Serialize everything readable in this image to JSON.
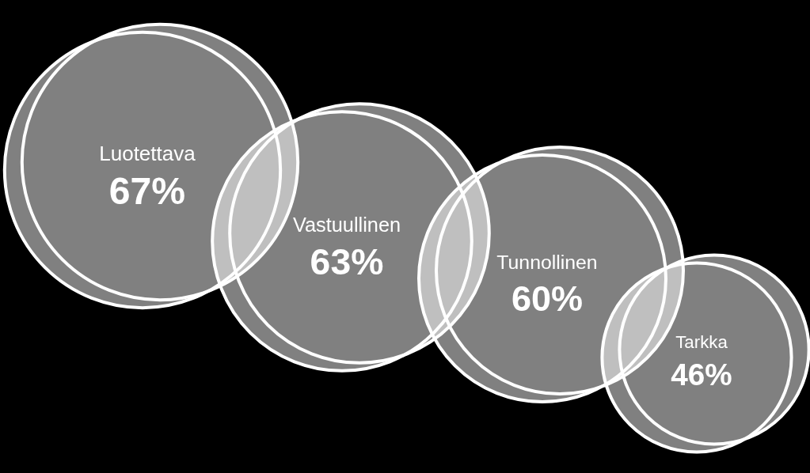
{
  "chart_data": {
    "type": "other",
    "categories": [
      "Luotettava",
      "Vastuullinen",
      "Tunnollinen",
      "Tarkka"
    ],
    "values": [
      67,
      63,
      60,
      46
    ],
    "value_labels": [
      "67%",
      "63%",
      "60%",
      "46%"
    ],
    "color": "#ffffff"
  }
}
